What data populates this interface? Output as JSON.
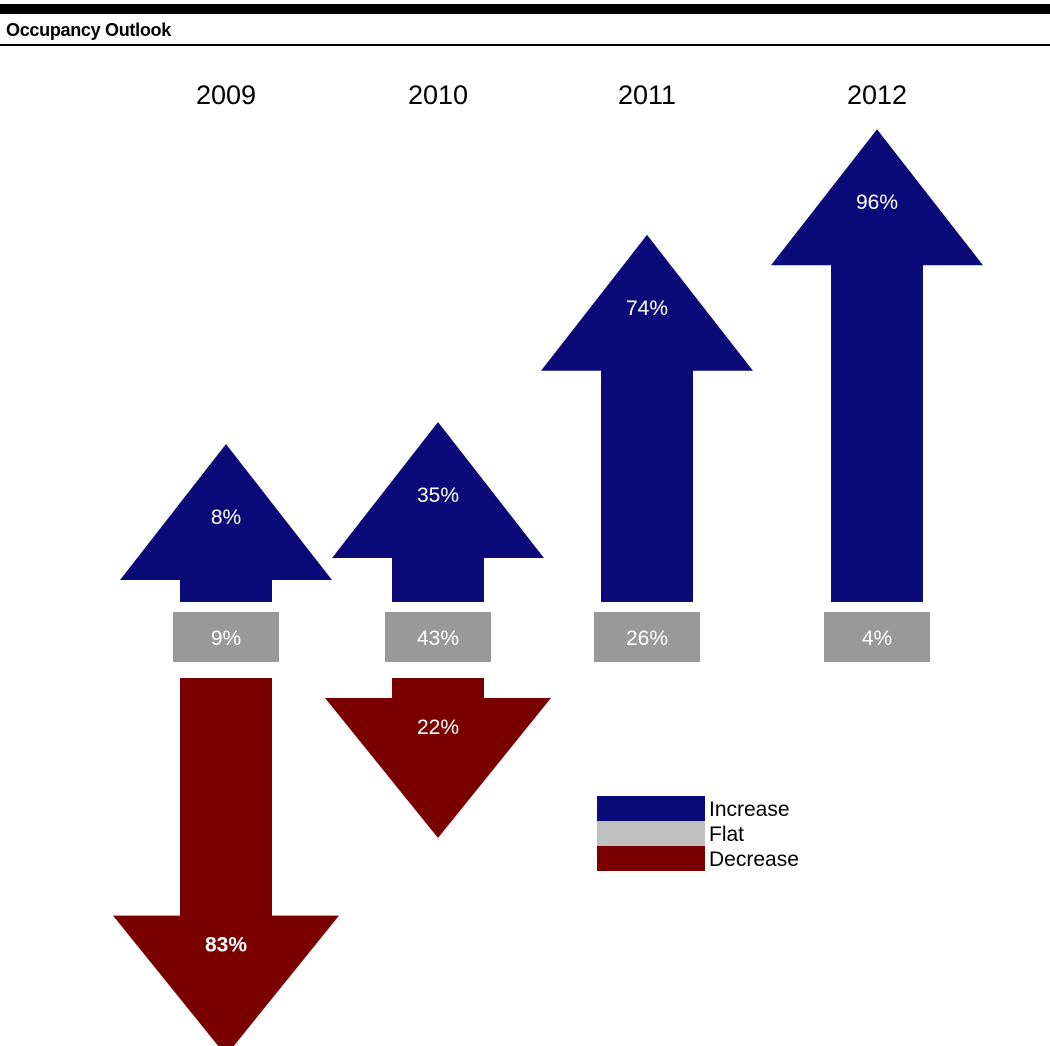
{
  "title": "Occupancy Outlook",
  "colors": {
    "increase": "#0a0a78",
    "flat": "#999999",
    "decrease": "#7a0000",
    "legend_flat": "#c0c0c0"
  },
  "legend": [
    {
      "label": "Increase",
      "color": "#0a0a78"
    },
    {
      "label": "Flat",
      "color": "#c0c0c0"
    },
    {
      "label": "Decrease",
      "color": "#7a0000"
    }
  ],
  "chart_data": {
    "type": "bar",
    "title": "Occupancy Outlook",
    "categories": [
      "2009",
      "2010",
      "2011",
      "2012"
    ],
    "series": [
      {
        "name": "Increase",
        "values": [
          8,
          35,
          74,
          96
        ]
      },
      {
        "name": "Flat",
        "values": [
          9,
          43,
          26,
          4
        ]
      },
      {
        "name": "Decrease",
        "values": [
          83,
          22,
          0,
          0
        ]
      }
    ],
    "labels": {
      "increase": [
        "8%",
        "35%",
        "74%",
        "96%"
      ],
      "flat": [
        "9%",
        "43%",
        "26%",
        "4%"
      ],
      "decrease": [
        "83%",
        "22%",
        "",
        ""
      ]
    },
    "legend_position": "bottom-right"
  }
}
